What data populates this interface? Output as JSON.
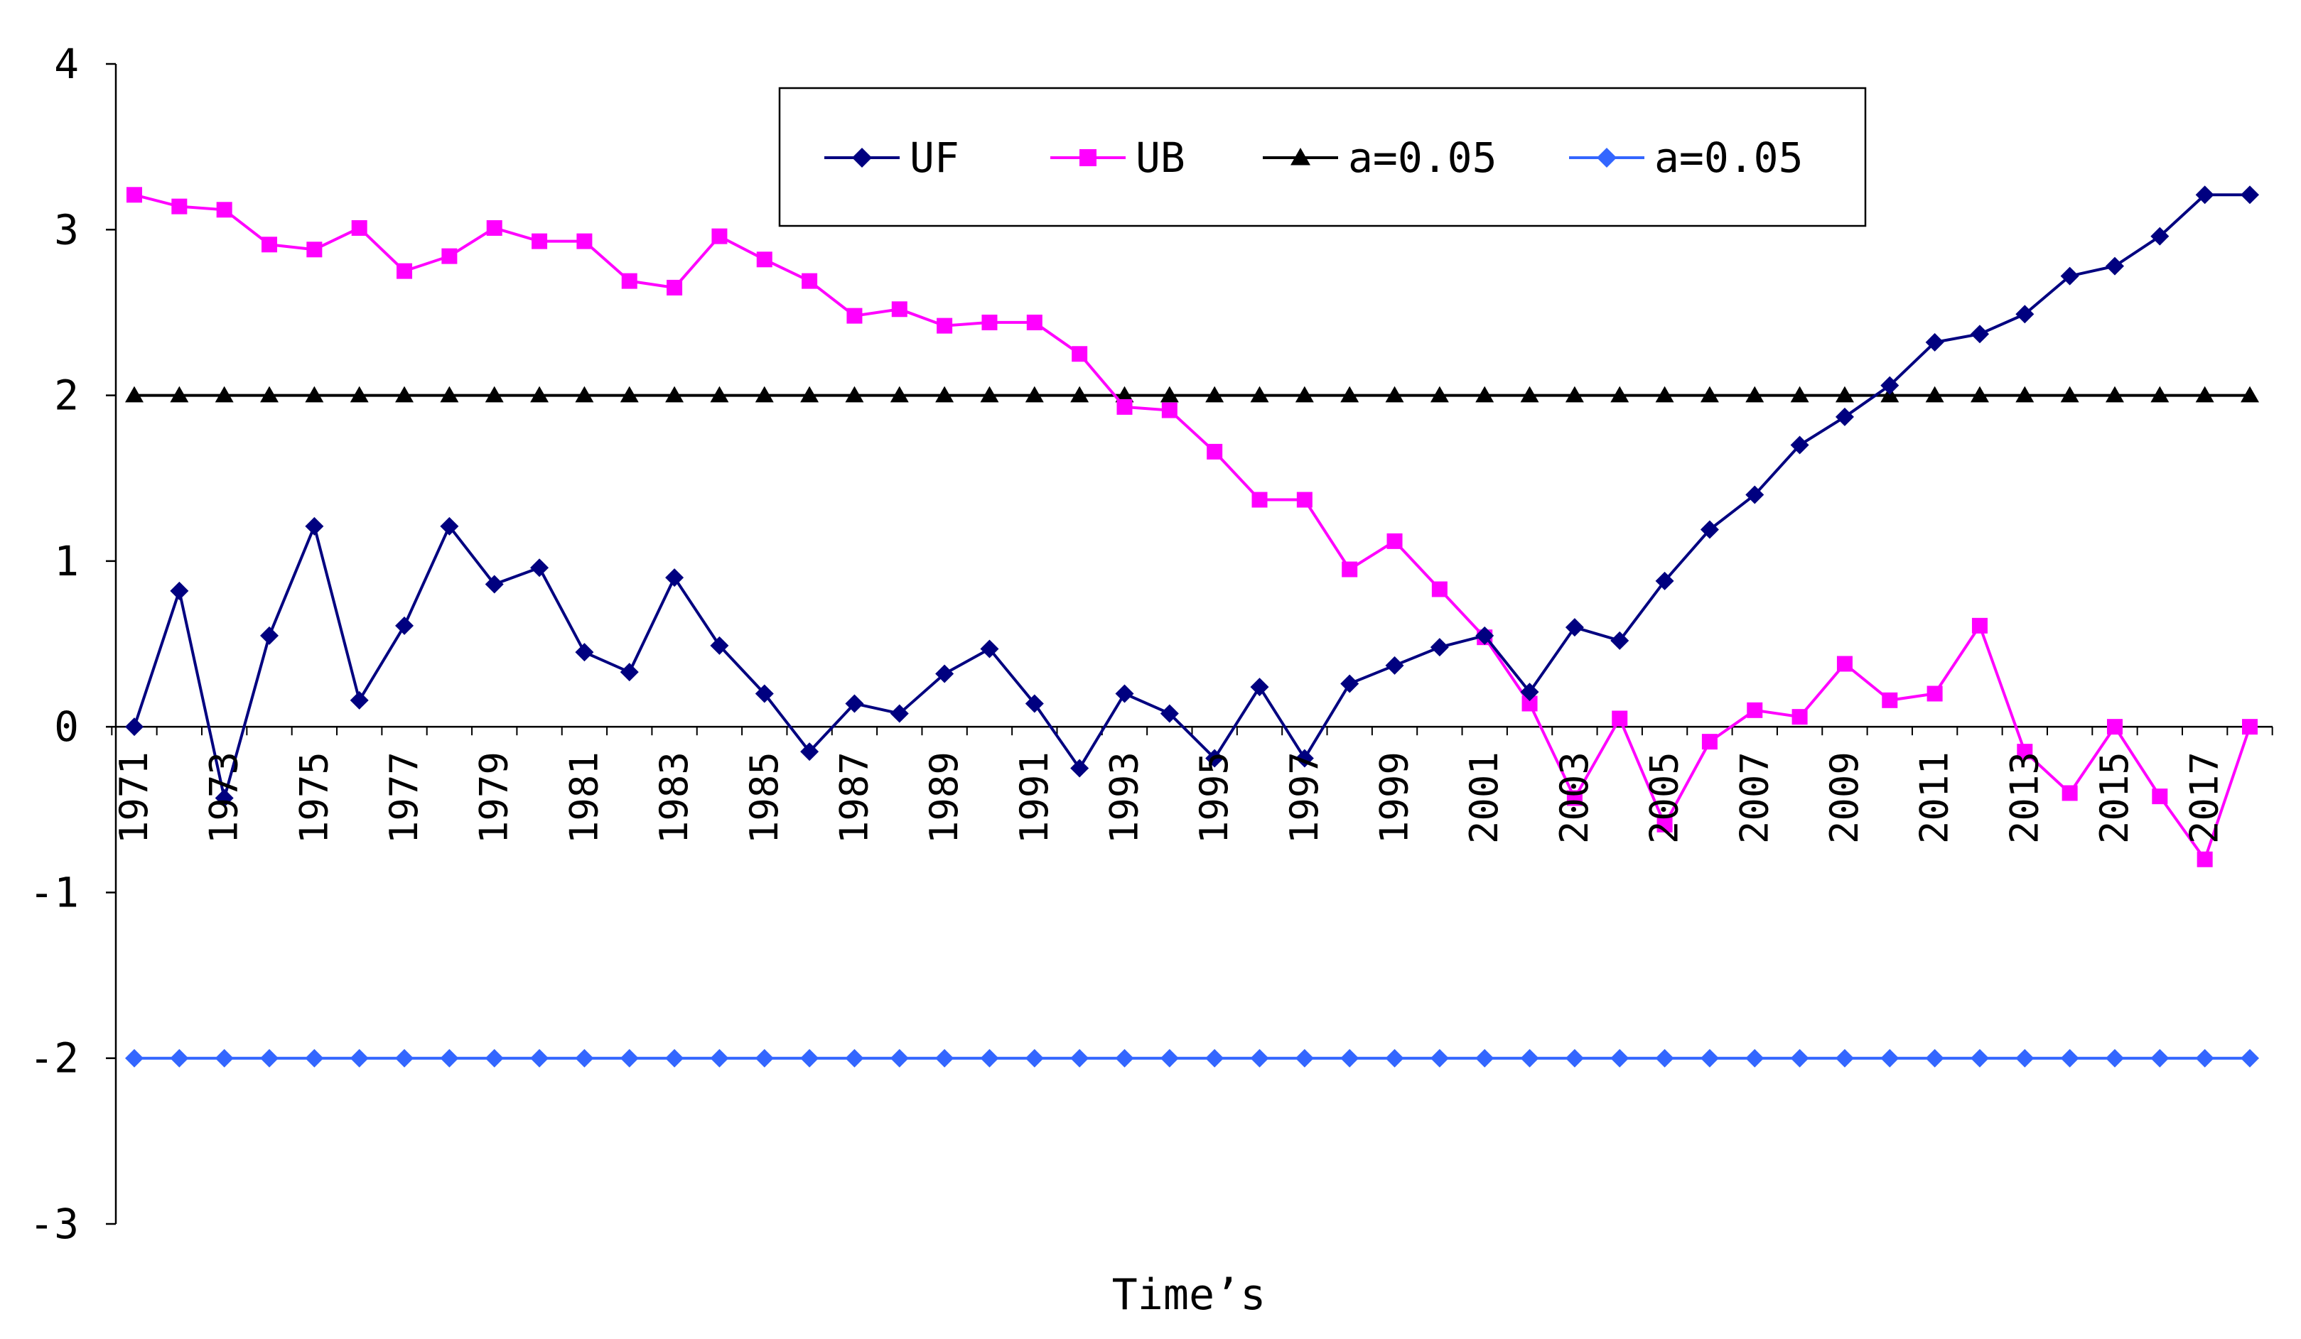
{
  "chart_data": {
    "type": "line",
    "title": "",
    "xlabel": "Time’s",
    "ylabel": "",
    "ylim": [
      -3,
      4
    ],
    "yticks": [
      4,
      3,
      2,
      1,
      0,
      -1,
      -2,
      -3
    ],
    "x": [
      1971,
      1972,
      1973,
      1974,
      1975,
      1976,
      1977,
      1978,
      1979,
      1980,
      1981,
      1982,
      1983,
      1984,
      1985,
      1986,
      1987,
      1988,
      1989,
      1990,
      1991,
      1992,
      1993,
      1994,
      1995,
      1996,
      1997,
      1998,
      1999,
      2000,
      2001,
      2002,
      2003,
      2004,
      2005,
      2006,
      2007,
      2008,
      2009,
      2010,
      2011,
      2012,
      2013,
      2014,
      2015,
      2016,
      2017,
      2018
    ],
    "xtick_labels": [
      "1971",
      "1973",
      "1975",
      "1977",
      "1979",
      "1981",
      "1983",
      "1985",
      "1987",
      "1989",
      "1991",
      "1993",
      "1995",
      "1997",
      "1999",
      "2001",
      "2003",
      "2005",
      "2007",
      "2009",
      "2011",
      "2013",
      "2015",
      "2017"
    ],
    "legend_position": "top",
    "series": [
      {
        "name": "UF",
        "color": "#000080",
        "marker": "diamond",
        "values": [
          0.0,
          0.82,
          -0.43,
          0.55,
          1.21,
          0.16,
          0.61,
          1.21,
          0.86,
          0.96,
          0.45,
          0.33,
          0.9,
          0.49,
          0.2,
          -0.15,
          0.14,
          0.08,
          0.32,
          0.47,
          0.14,
          -0.25,
          0.2,
          0.08,
          -0.19,
          0.24,
          -0.19,
          0.26,
          0.37,
          0.48,
          0.55,
          0.21,
          0.6,
          0.52,
          0.88,
          1.19,
          1.4,
          1.7,
          1.87,
          2.06,
          2.32,
          2.37,
          2.49,
          2.72,
          2.78,
          2.96,
          3.21,
          3.21
        ]
      },
      {
        "name": "UB",
        "color": "#ff00ff",
        "marker": "square",
        "values": [
          3.21,
          3.14,
          3.12,
          2.91,
          2.88,
          3.01,
          2.75,
          2.84,
          3.01,
          2.93,
          2.93,
          2.69,
          2.65,
          2.96,
          2.82,
          2.69,
          2.48,
          2.52,
          2.42,
          2.44,
          2.44,
          2.25,
          1.93,
          1.91,
          1.66,
          1.37,
          1.37,
          0.95,
          1.12,
          0.83,
          0.54,
          0.14,
          -0.43,
          0.05,
          -0.59,
          -0.09,
          0.1,
          0.06,
          0.38,
          0.16,
          0.2,
          0.61,
          -0.15,
          -0.4,
          0.0,
          -0.42,
          -0.8,
          0.0
        ]
      },
      {
        "name": "a=0.05",
        "color": "#000000",
        "marker": "triangle",
        "values": [
          2,
          2,
          2,
          2,
          2,
          2,
          2,
          2,
          2,
          2,
          2,
          2,
          2,
          2,
          2,
          2,
          2,
          2,
          2,
          2,
          2,
          2,
          2,
          2,
          2,
          2,
          2,
          2,
          2,
          2,
          2,
          2,
          2,
          2,
          2,
          2,
          2,
          2,
          2,
          2,
          2,
          2,
          2,
          2,
          2,
          2,
          2,
          2
        ]
      },
      {
        "name": "a=0.05",
        "color": "#3366ff",
        "marker": "diamond",
        "values": [
          -2,
          -2,
          -2,
          -2,
          -2,
          -2,
          -2,
          -2,
          -2,
          -2,
          -2,
          -2,
          -2,
          -2,
          -2,
          -2,
          -2,
          -2,
          -2,
          -2,
          -2,
          -2,
          -2,
          -2,
          -2,
          -2,
          -2,
          -2,
          -2,
          -2,
          -2,
          -2,
          -2,
          -2,
          -2,
          -2,
          -2,
          -2,
          -2,
          -2,
          -2,
          -2,
          -2,
          -2,
          -2,
          -2,
          -2,
          -2
        ]
      }
    ]
  }
}
